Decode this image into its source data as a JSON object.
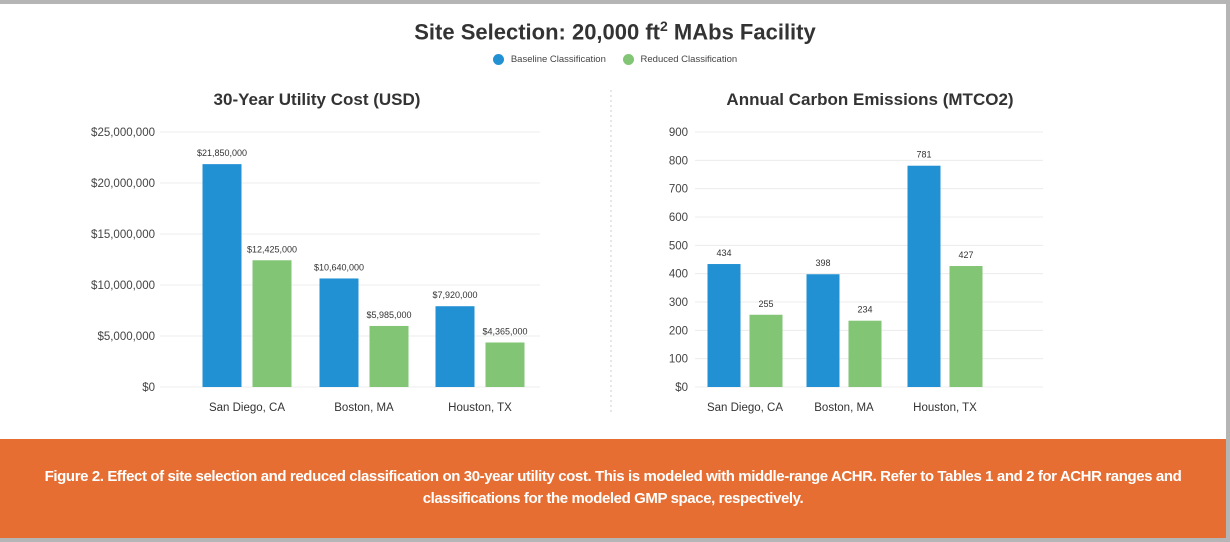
{
  "title_main": "Site Selection: 20,000 ft",
  "title_sup": "2",
  "title_rest": " MAbs Facility",
  "legend": [
    {
      "name": "Baseline Classification",
      "color": "#2291d3"
    },
    {
      "name": "Reduced Classification",
      "color": "#82c574"
    }
  ],
  "chart_data": [
    {
      "type": "bar",
      "title": "30-Year Utility Cost (USD)",
      "categories": [
        "San Diego, CA",
        "Boston, MA",
        "Houston, TX"
      ],
      "series": [
        {
          "name": "Baseline Classification",
          "values": [
            21850000,
            10640000,
            7920000
          ],
          "labels": [
            "$21,850,000",
            "$10,640,000",
            "$7,920,000"
          ]
        },
        {
          "name": "Reduced Classification",
          "values": [
            12425000,
            5985000,
            4365000
          ],
          "labels": [
            "$12,425,000",
            "$5,985,000",
            "$4,365,000"
          ]
        }
      ],
      "ylim": [
        0,
        25000000
      ],
      "yticks": [
        "$0",
        "$5,000,000",
        "$10,000,000",
        "$15,000,000",
        "$20,000,000",
        "$25,000,000"
      ],
      "grid": true
    },
    {
      "type": "bar",
      "title": "Annual Carbon Emissions (MTCO2)",
      "categories": [
        "San Diego, CA",
        "Boston, MA",
        "Houston, TX"
      ],
      "series": [
        {
          "name": "Baseline Classification",
          "values": [
            434,
            398,
            781
          ],
          "labels": [
            "434",
            "398",
            "781"
          ]
        },
        {
          "name": "Reduced Classification",
          "values": [
            255,
            234,
            427
          ],
          "labels": [
            "255",
            "234",
            "427"
          ]
        }
      ],
      "ylim": [
        0,
        900
      ],
      "yticks": [
        "$0",
        "100",
        "200",
        "300",
        "400",
        "500",
        "600",
        "700",
        "800",
        "900"
      ],
      "grid": true
    }
  ],
  "caption": "Figure 2. Effect of site selection and reduced classification on 30-year utility cost. This is modeled with middle-range ACHR. Refer to Tables 1 and 2 for ACHR ranges and classifications for the modeled GMP space, respectively."
}
